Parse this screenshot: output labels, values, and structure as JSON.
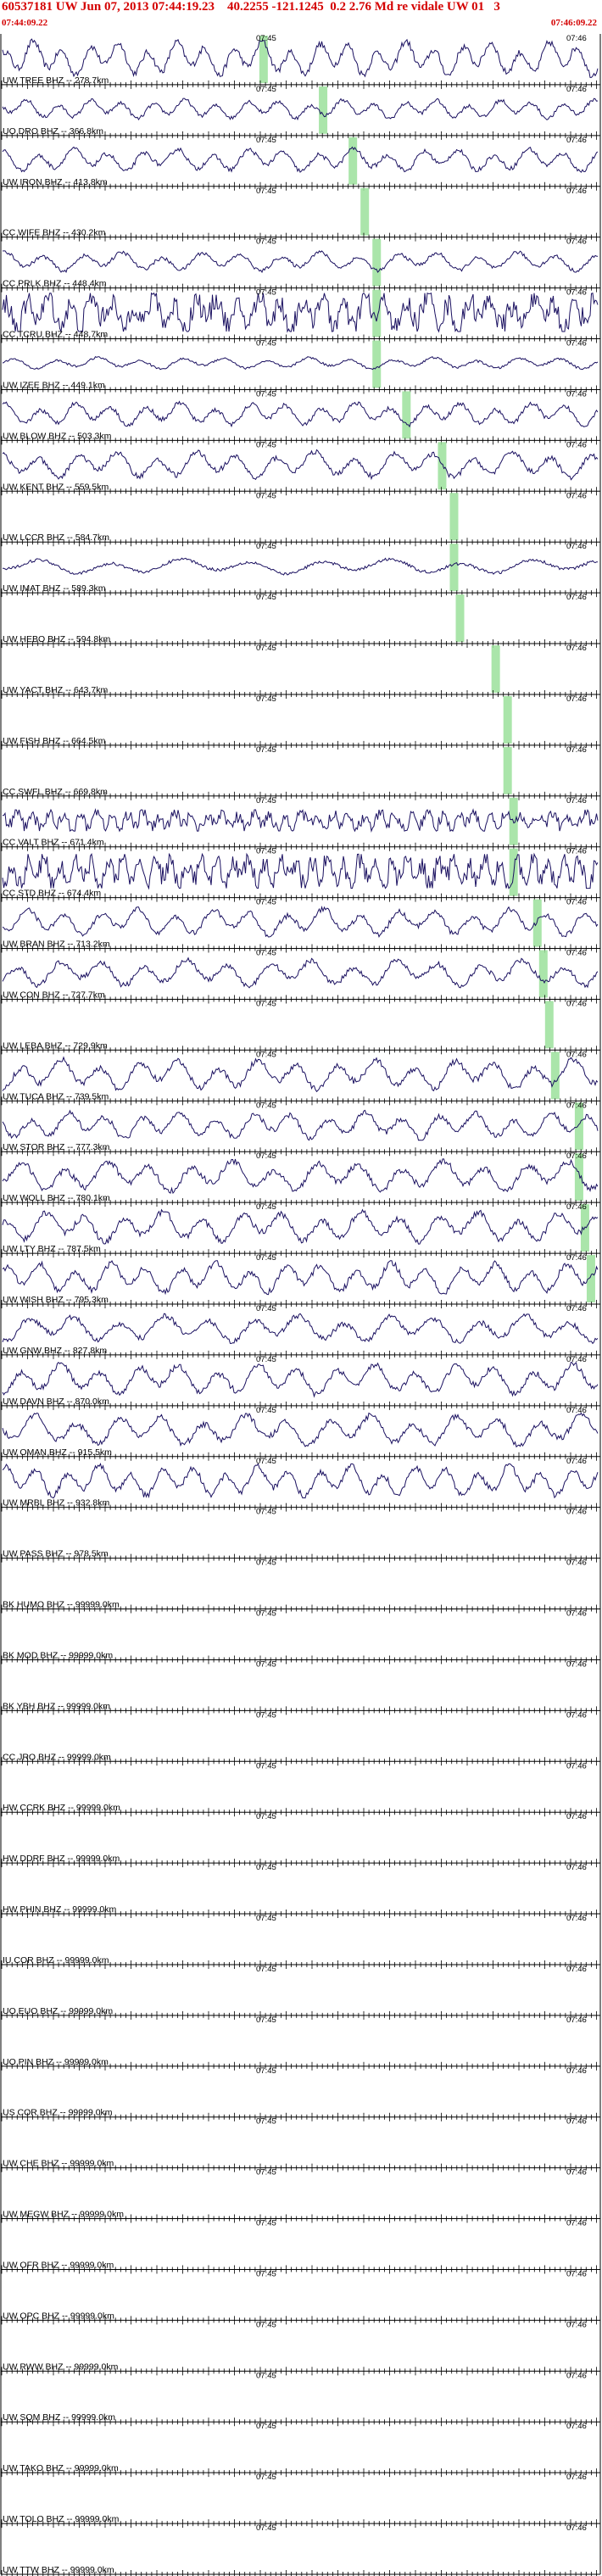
{
  "header": {
    "title": "60537181 UW Jun 07, 2013 07:44:19.23    40.2255 -121.1245  0.2 2.76 Md re vidale UW 01   3",
    "start_time": "07:44:09.22",
    "end_time": "07:46:09.22"
  },
  "colors": {
    "header_text": "#d40000",
    "trace": "#1a1060",
    "pick_marker": "#9be09b",
    "axis": "#000000"
  },
  "chart_data": {
    "type": "line",
    "title": "60537181 UW Jun 07, 2013 07:44:19.23    40.2255 -121.1245  0.2 2.76 Md re vidale UW 01   3",
    "x_range": [
      "07:44:09.22",
      "07:46:09.22"
    ],
    "minute_marks": [
      "07:45",
      "07:46"
    ],
    "stations": [
      {
        "label": "UW TREE BHZ -- 278.7km",
        "noise": 0.9,
        "freq": 2.2,
        "pick": 0.43
      },
      {
        "label": "UO DRO BHZ -- 366.8km",
        "noise": 0.5,
        "freq": 2.0,
        "pick": 0.53
      },
      {
        "label": "UW IRON BHZ -- 413.8km",
        "noise": 0.6,
        "freq": 1.8,
        "pick": 0.58
      },
      {
        "label": "CC WIFE BHZ -- 430.2km",
        "noise": 0.0,
        "freq": 0.0,
        "pick": 0.6
      },
      {
        "label": "CC PRLK BHZ -- 448.4km",
        "noise": 0.5,
        "freq": 1.6,
        "pick": 0.62
      },
      {
        "label": "CC TCRU BHZ -- 448.7km",
        "noise": 0.9,
        "freq": 3.0,
        "pick": 0.62
      },
      {
        "label": "UW IZEE BHZ -- 449.1km",
        "noise": 0.3,
        "freq": 1.5,
        "pick": 0.62
      },
      {
        "label": "UW BLOW BHZ -- 503.3km",
        "noise": 0.6,
        "freq": 1.8,
        "pick": 0.67
      },
      {
        "label": "UW KENT BHZ -- 559.5km",
        "noise": 0.7,
        "freq": 1.6,
        "pick": 0.73
      },
      {
        "label": "UW LCCR BHZ -- 584.7km",
        "noise": 0.0,
        "freq": 0.0,
        "pick": 0.75
      },
      {
        "label": "UW IMAT BHZ -- 589.3km",
        "noise": 0.4,
        "freq": 0.9,
        "pick": 0.75
      },
      {
        "label": "UW HEBO BHZ -- 594.8km",
        "noise": 0.0,
        "freq": 0.0,
        "pick": 0.76
      },
      {
        "label": "UW YACT BHZ -- 643.7km",
        "noise": 0.0,
        "freq": 0.0,
        "pick": 0.82
      },
      {
        "label": "UW FISH BHZ -- 664.5km",
        "noise": 0.0,
        "freq": 0.0,
        "pick": 0.84
      },
      {
        "label": "CC SWFL BHZ -- 669.8km",
        "noise": 0.0,
        "freq": 0.0,
        "pick": 0.84
      },
      {
        "label": "CC VALT BHZ -- 671.4km",
        "noise": 0.5,
        "freq": 4.0,
        "pick": 0.85
      },
      {
        "label": "CC STD BHZ -- 674.4km",
        "noise": 0.8,
        "freq": 4.0,
        "pick": 0.85
      },
      {
        "label": "UW BRAN BHZ -- 713.2km",
        "noise": 0.7,
        "freq": 1.7,
        "pick": 0.89
      },
      {
        "label": "UW CON BHZ -- 727.7km",
        "noise": 0.7,
        "freq": 1.5,
        "pick": 0.9
      },
      {
        "label": "UW LEBA BHZ -- 729.9km",
        "noise": 0.0,
        "freq": 0.0,
        "pick": 0.91
      },
      {
        "label": "UW TUCA BHZ -- 739.5km",
        "noise": 0.8,
        "freq": 1.6,
        "pick": 0.92
      },
      {
        "label": "UW STOR BHZ -- 777.3km",
        "noise": 0.7,
        "freq": 1.7,
        "pick": 0.96
      },
      {
        "label": "UW WOLL BHZ -- 780.1km",
        "noise": 0.8,
        "freq": 1.5,
        "pick": 0.96
      },
      {
        "label": "UW LTY BHZ -- 787.5km",
        "noise": 0.8,
        "freq": 1.6,
        "pick": 0.97
      },
      {
        "label": "UW WISH BHZ -- 795.3km",
        "noise": 0.8,
        "freq": 1.8,
        "pick": 0.98
      },
      {
        "label": "UW GNW BHZ -- 827.8km",
        "noise": 0.7,
        "freq": 1.4,
        "pick": null
      },
      {
        "label": "UW DAVN BHZ -- 870.0km",
        "noise": 0.8,
        "freq": 1.6,
        "pick": null
      },
      {
        "label": "UW OMAN BHZ -- 915.5km",
        "noise": 0.8,
        "freq": 1.5,
        "pick": null
      },
      {
        "label": "UW MRBL BHZ -- 932.8km",
        "noise": 0.8,
        "freq": 2.0,
        "pick": null
      },
      {
        "label": "UW PASS BHZ -- 978.5km",
        "noise": 0.0,
        "freq": 0.0,
        "pick": null
      },
      {
        "label": "BK HUMO BHZ -- 99999.0km",
        "noise": 0.0,
        "freq": 0.0,
        "pick": null
      },
      {
        "label": "BK MOD BHZ -- 99999.0km",
        "noise": 0.0,
        "freq": 0.0,
        "pick": null
      },
      {
        "label": "BK YBH BHZ -- 99999.0km",
        "noise": 0.0,
        "freq": 0.0,
        "pick": null
      },
      {
        "label": "CC JRO BHZ -- 99999.0km",
        "noise": 0.0,
        "freq": 0.0,
        "pick": null
      },
      {
        "label": "HW CCRK BHZ -- 99999.0km",
        "noise": 0.0,
        "freq": 0.0,
        "pick": null
      },
      {
        "label": "HW DDRF BHZ -- 99999.0km",
        "noise": 0.0,
        "freq": 0.0,
        "pick": null
      },
      {
        "label": "HW PHIN BHZ -- 99999.0km",
        "noise": 0.0,
        "freq": 0.0,
        "pick": null
      },
      {
        "label": "IU COR BHZ -- 99999.0km",
        "noise": 0.0,
        "freq": 0.0,
        "pick": null
      },
      {
        "label": "UO EUO BHZ -- 99999.0km",
        "noise": 0.0,
        "freq": 0.0,
        "pick": null
      },
      {
        "label": "UO PIN BHZ -- 99999.0km",
        "noise": 0.0,
        "freq": 0.0,
        "pick": null
      },
      {
        "label": "US COR BHZ -- 99999.0km",
        "noise": 0.0,
        "freq": 0.0,
        "pick": null
      },
      {
        "label": "UW CHE BHZ -- 99999.0km",
        "noise": 0.0,
        "freq": 0.0,
        "pick": null
      },
      {
        "label": "UW MEGW BHZ -- 99999.0km",
        "noise": 0.0,
        "freq": 0.0,
        "pick": null
      },
      {
        "label": "UW OFR BHZ -- 99999.0km",
        "noise": 0.0,
        "freq": 0.0,
        "pick": null
      },
      {
        "label": "UW OPC BHZ -- 99999.0km",
        "noise": 0.0,
        "freq": 0.0,
        "pick": null
      },
      {
        "label": "UW RWW BHZ -- 99999.0km",
        "noise": 0.0,
        "freq": 0.0,
        "pick": null
      },
      {
        "label": "UW SQM BHZ -- 99999.0km",
        "noise": 0.0,
        "freq": 0.0,
        "pick": null
      },
      {
        "label": "UW TAKO BHZ -- 99999.0km",
        "noise": 0.0,
        "freq": 0.0,
        "pick": null
      },
      {
        "label": "UW TOLO BHZ -- 99999.0km",
        "noise": 0.0,
        "freq": 0.0,
        "pick": null
      },
      {
        "label": "UW TTW BHZ -- 99999.0km",
        "noise": 0.0,
        "freq": 0.0,
        "pick": null
      }
    ]
  }
}
